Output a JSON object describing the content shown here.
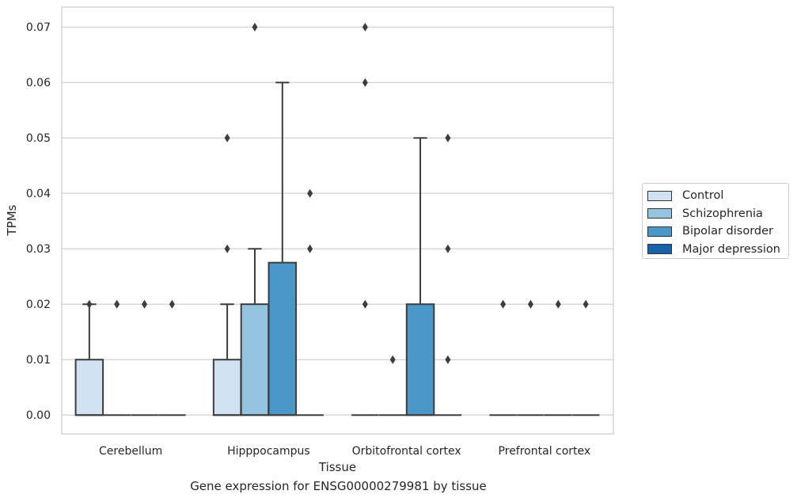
{
  "caption": "Gene expression for ENSG00000279981 by tissue",
  "chart_data": {
    "type": "box",
    "xlabel": "Tissue",
    "ylabel": "TPMs",
    "ylim": [
      -0.0034,
      0.0736
    ],
    "yticks": [
      0.0,
      0.01,
      0.02,
      0.03,
      0.04,
      0.05,
      0.06,
      0.07
    ],
    "ytick_labels": [
      "0.00",
      "0.01",
      "0.02",
      "0.03",
      "0.04",
      "0.05",
      "0.06",
      "0.07"
    ],
    "categories": [
      "Cerebellum",
      "Hipppocampus",
      "Orbitofrontal cortex",
      "Prefrontal cortex"
    ],
    "grid": "horizontal",
    "legend_position": "right",
    "series": [
      {
        "name": "Control",
        "color": "#d0e1f2",
        "boxes": [
          {
            "whislo": 0.0,
            "q1": 0.0,
            "med": 0.0,
            "q3": 0.01,
            "whishi": 0.02,
            "fliers": [
              0.02
            ]
          },
          {
            "whislo": 0.0,
            "q1": 0.0,
            "med": 0.0,
            "q3": 0.01,
            "whishi": 0.02,
            "fliers": [
              0.03,
              0.05
            ]
          },
          {
            "whislo": 0.0,
            "q1": 0.0,
            "med": 0.0,
            "q3": 0.0,
            "whishi": 0.0,
            "fliers": [
              0.02,
              0.06,
              0.07
            ]
          },
          {
            "whislo": 0.0,
            "q1": 0.0,
            "med": 0.0,
            "q3": 0.0,
            "whishi": 0.0,
            "fliers": [
              0.02
            ]
          }
        ]
      },
      {
        "name": "Schizophrenia",
        "color": "#94c4df",
        "boxes": [
          {
            "whislo": 0.0,
            "q1": 0.0,
            "med": 0.0,
            "q3": 0.0,
            "whishi": 0.0,
            "fliers": [
              0.02
            ]
          },
          {
            "whislo": 0.0,
            "q1": 0.0,
            "med": 0.0,
            "q3": 0.02,
            "whishi": 0.03,
            "fliers": [
              0.07
            ]
          },
          {
            "whislo": 0.0,
            "q1": 0.0,
            "med": 0.0,
            "q3": 0.0,
            "whishi": 0.0,
            "fliers": [
              0.01
            ]
          },
          {
            "whislo": 0.0,
            "q1": 0.0,
            "med": 0.0,
            "q3": 0.0,
            "whishi": 0.0,
            "fliers": [
              0.02
            ]
          }
        ]
      },
      {
        "name": "Bipolar disorder",
        "color": "#4a98c9",
        "boxes": [
          {
            "whislo": 0.0,
            "q1": 0.0,
            "med": 0.0,
            "q3": 0.0,
            "whishi": 0.0,
            "fliers": [
              0.02
            ]
          },
          {
            "whislo": 0.0,
            "q1": 0.0,
            "med": 0.0,
            "q3": 0.0275,
            "whishi": 0.06,
            "fliers": []
          },
          {
            "whislo": 0.0,
            "q1": 0.0,
            "med": 0.0,
            "q3": 0.02,
            "whishi": 0.05,
            "fliers": []
          },
          {
            "whislo": 0.0,
            "q1": 0.0,
            "med": 0.0,
            "q3": 0.0,
            "whishi": 0.0,
            "fliers": [
              0.02
            ]
          }
        ]
      },
      {
        "name": "Major depression",
        "color": "#1764ab",
        "boxes": [
          {
            "whislo": 0.0,
            "q1": 0.0,
            "med": 0.0,
            "q3": 0.0,
            "whishi": 0.0,
            "fliers": [
              0.02
            ]
          },
          {
            "whislo": 0.0,
            "q1": 0.0,
            "med": 0.0,
            "q3": 0.0,
            "whishi": 0.0,
            "fliers": [
              0.03,
              0.04
            ]
          },
          {
            "whislo": 0.0,
            "q1": 0.0,
            "med": 0.0,
            "q3": 0.0,
            "whishi": 0.0,
            "fliers": [
              0.01,
              0.03,
              0.05
            ]
          },
          {
            "whislo": 0.0,
            "q1": 0.0,
            "med": 0.0,
            "q3": 0.0,
            "whishi": 0.0,
            "fliers": [
              0.02
            ]
          }
        ]
      }
    ]
  }
}
